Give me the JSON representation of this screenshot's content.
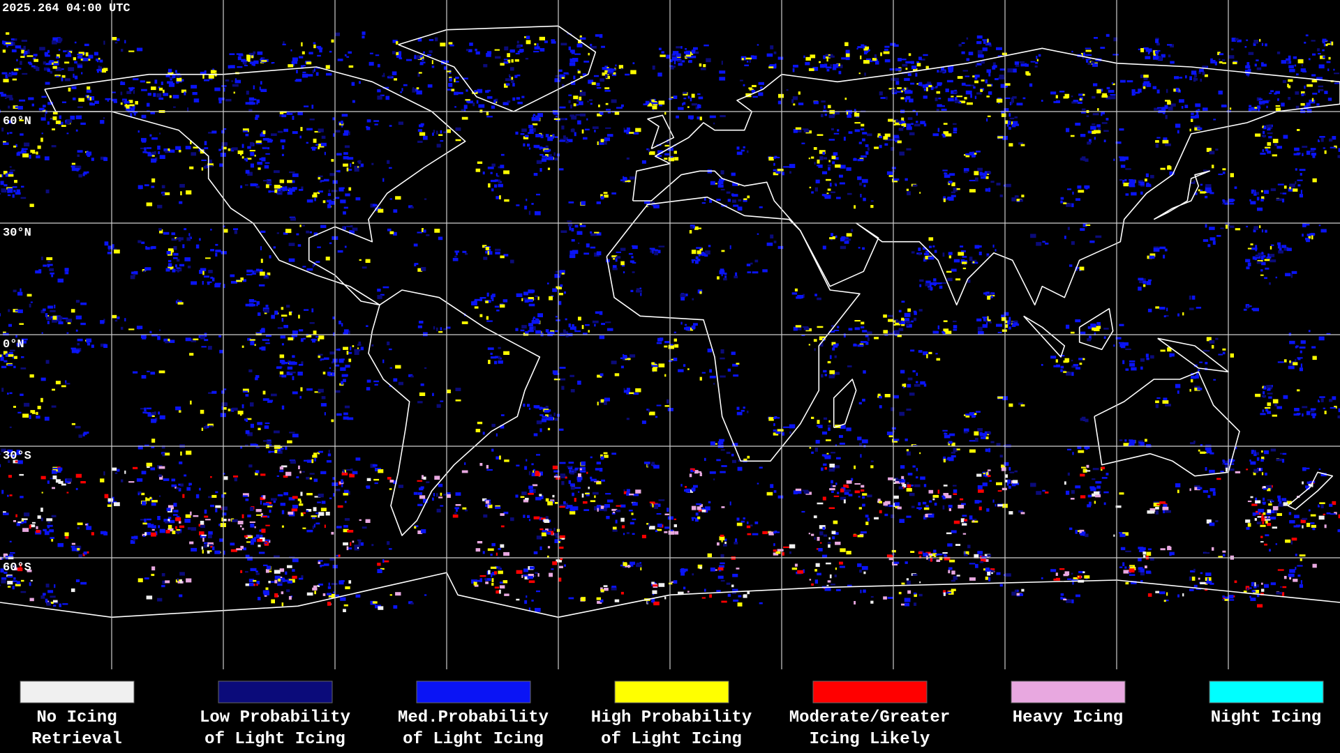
{
  "header": {
    "timestamp": "2025.264 04:00 UTC"
  },
  "latitude_labels": [
    "60°N",
    "30°N",
    "0°N",
    "30°S",
    "60°S"
  ],
  "legend": [
    {
      "lines": [
        "No Icing",
        "Retrieval"
      ],
      "color": "#f0f0f0"
    },
    {
      "lines": [
        "Low Probability",
        "of Light Icing"
      ],
      "color": "#0b0b7a"
    },
    {
      "lines": [
        "Med.Probability",
        "of Light Icing"
      ],
      "color": "#0a14f5"
    },
    {
      "lines": [
        "High Probability",
        "of Light Icing"
      ],
      "color": "#ffff00"
    },
    {
      "lines": [
        "Moderate/Greater",
        "Icing Likely"
      ],
      "color": "#ff0000"
    },
    {
      "lines": [
        "Heavy Icing"
      ],
      "color": "#e8a8e0"
    },
    {
      "lines": [
        "Night Icing"
      ],
      "color": "#00ffff"
    }
  ]
}
